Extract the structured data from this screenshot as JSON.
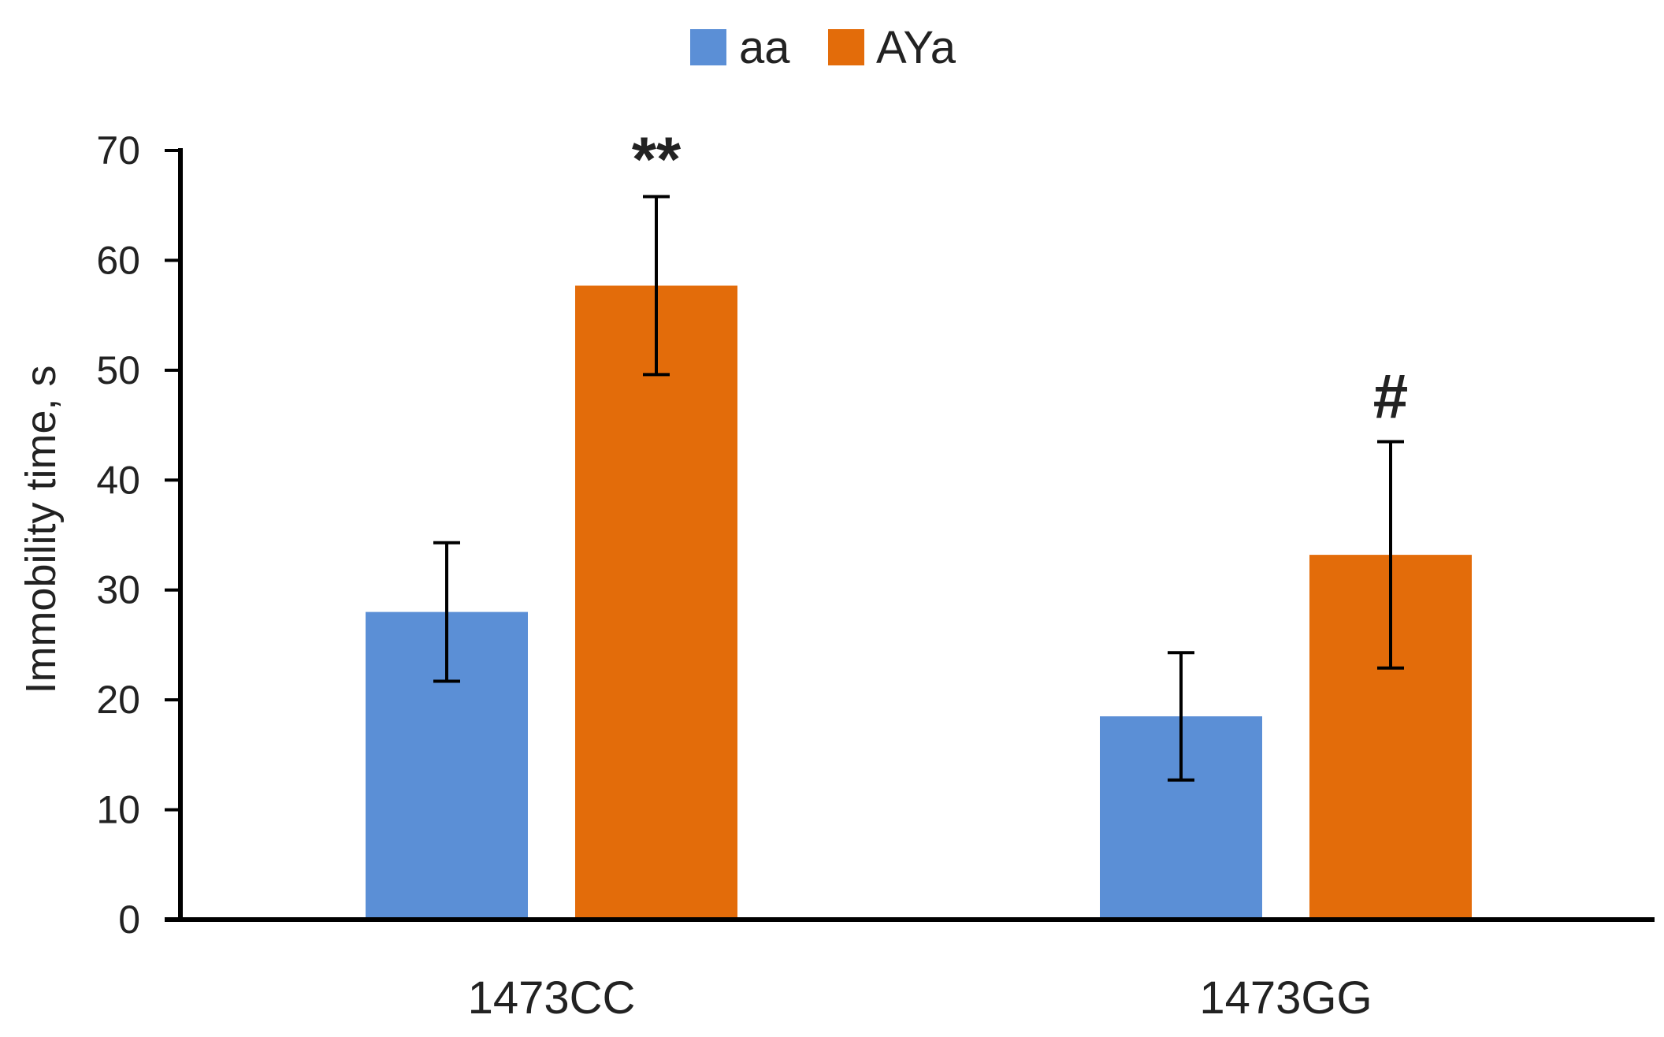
{
  "chart_data": {
    "type": "bar",
    "title": "",
    "xlabel": "",
    "ylabel": "Immobility time, s",
    "ylim": [
      0,
      70
    ],
    "yticks": [
      0,
      10,
      20,
      30,
      40,
      50,
      60,
      70
    ],
    "grid": false,
    "legend_position": "top-center",
    "categories": [
      "1473CC",
      "1473GG"
    ],
    "series": [
      {
        "name": "aa",
        "color": "#5B8FD6",
        "values": [
          28.0,
          18.5
        ],
        "errors": [
          6.3,
          5.8
        ]
      },
      {
        "name": "AYa",
        "color": "#E36C0A",
        "values": [
          57.7,
          33.2
        ],
        "errors": [
          8.1,
          10.3
        ]
      }
    ],
    "annotations": [
      {
        "category": "1473CC",
        "series": "AYa",
        "text": "**"
      },
      {
        "category": "1473GG",
        "series": "AYa",
        "text": "#"
      }
    ]
  }
}
